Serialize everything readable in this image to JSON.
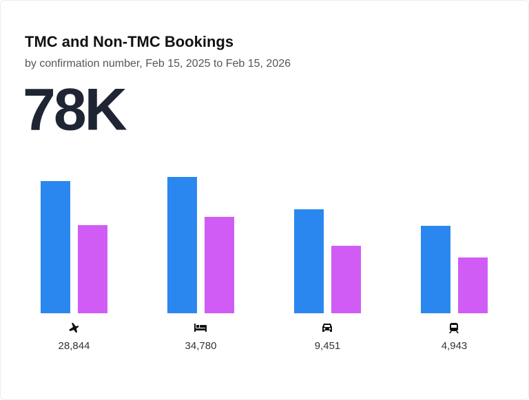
{
  "chart_data": {
    "type": "bar",
    "title": "TMC and Non-TMC Bookings",
    "subtitle": "by confirmation number, Feb 15, 2025 to Feb 15, 2026",
    "headline": "78K",
    "categories": [
      null,
      null,
      null,
      null
    ],
    "series": [
      {
        "color": "#2b87f0",
        "values": [
          192,
          198,
          151,
          127
        ]
      },
      {
        "color": "#d05cf5",
        "values": [
          128,
          140,
          98,
          81
        ]
      }
    ],
    "totals": [
      28844,
      34780,
      9451,
      4943
    ],
    "total_labels": [
      "28,844",
      "34,780",
      "9,451",
      "4,943"
    ],
    "ylim": [
      0,
      200
    ]
  }
}
